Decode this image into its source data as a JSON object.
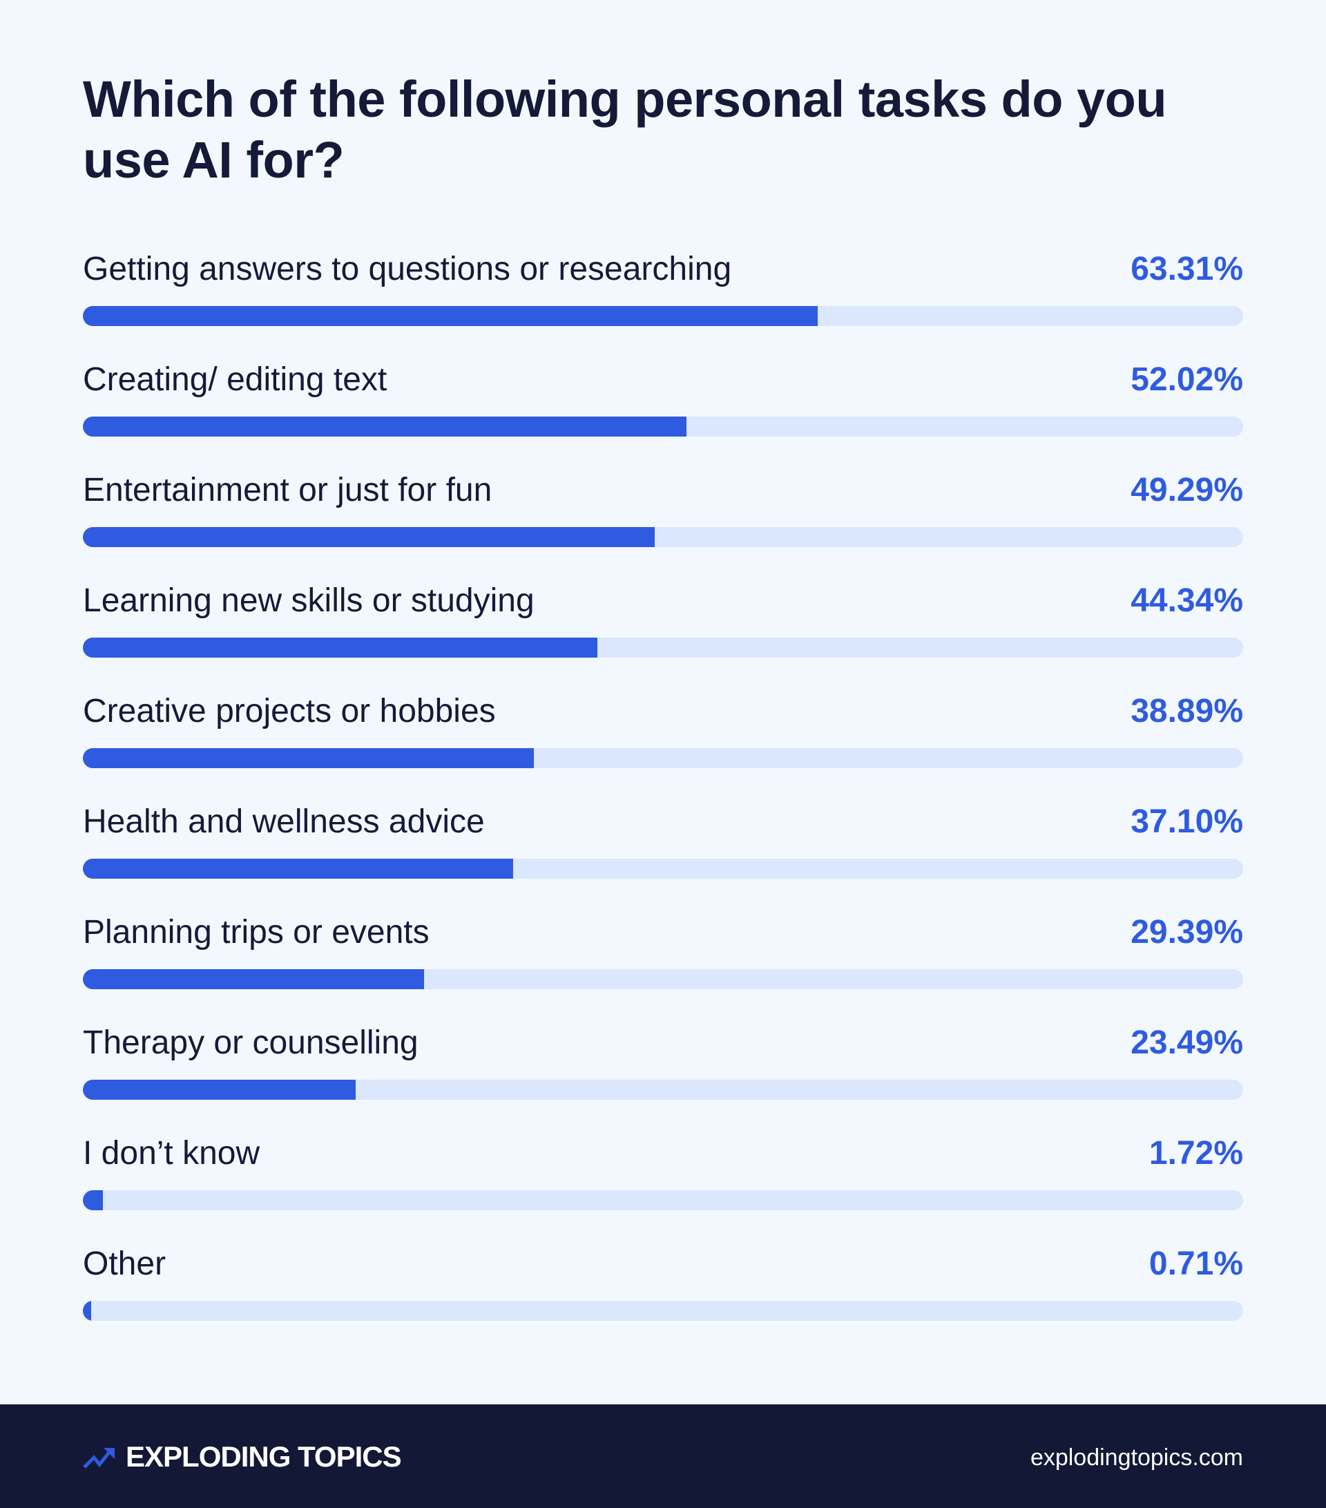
{
  "title": "Which of the following personal tasks do you use AI for?",
  "colors": {
    "bar": "#2f5be0",
    "track": "#dbe7fc",
    "background": "#f3f8fe",
    "footer": "#131836",
    "text": "#141a38"
  },
  "rows": [
    {
      "label": "Getting answers to questions or researching",
      "value": "63.31%",
      "pct": 63.31
    },
    {
      "label": "Creating/ editing text",
      "value": "52.02%",
      "pct": 52.02
    },
    {
      "label": "Entertainment or just for fun",
      "value": "49.29%",
      "pct": 49.29
    },
    {
      "label": "Learning new skills or studying",
      "value": "44.34%",
      "pct": 44.34
    },
    {
      "label": "Creative projects or hobbies",
      "value": "38.89%",
      "pct": 38.89
    },
    {
      "label": "Health and wellness advice",
      "value": "37.10%",
      "pct": 37.1
    },
    {
      "label": "Planning trips or events",
      "value": "29.39%",
      "pct": 29.39
    },
    {
      "label": "Therapy or counselling",
      "value": "23.49%",
      "pct": 23.49
    },
    {
      "label": "I don’t know",
      "value": "1.72%",
      "pct": 1.72
    },
    {
      "label": "Other",
      "value": "0.71%",
      "pct": 0.71
    }
  ],
  "footer": {
    "logo_text": "EXPLODING TOPICS",
    "logo_icon": "trend-arrow-icon",
    "site": "explodingtopics.com"
  },
  "chart_data": {
    "type": "bar",
    "orientation": "horizontal",
    "title": "Which of the following personal tasks do you use AI for?",
    "categories": [
      "Getting answers to questions or researching",
      "Creating/ editing text",
      "Entertainment or just for fun",
      "Learning new skills or studying",
      "Creative projects or hobbies",
      "Health and wellness advice",
      "Planning trips or events",
      "Therapy or counselling",
      "I don’t know",
      "Other"
    ],
    "values": [
      63.31,
      52.02,
      49.29,
      44.34,
      38.89,
      37.1,
      29.39,
      23.49,
      1.72,
      0.71
    ],
    "xlabel": "",
    "ylabel": "",
    "xlim": [
      0,
      100
    ],
    "unit": "%",
    "grid": false,
    "legend": "none"
  }
}
